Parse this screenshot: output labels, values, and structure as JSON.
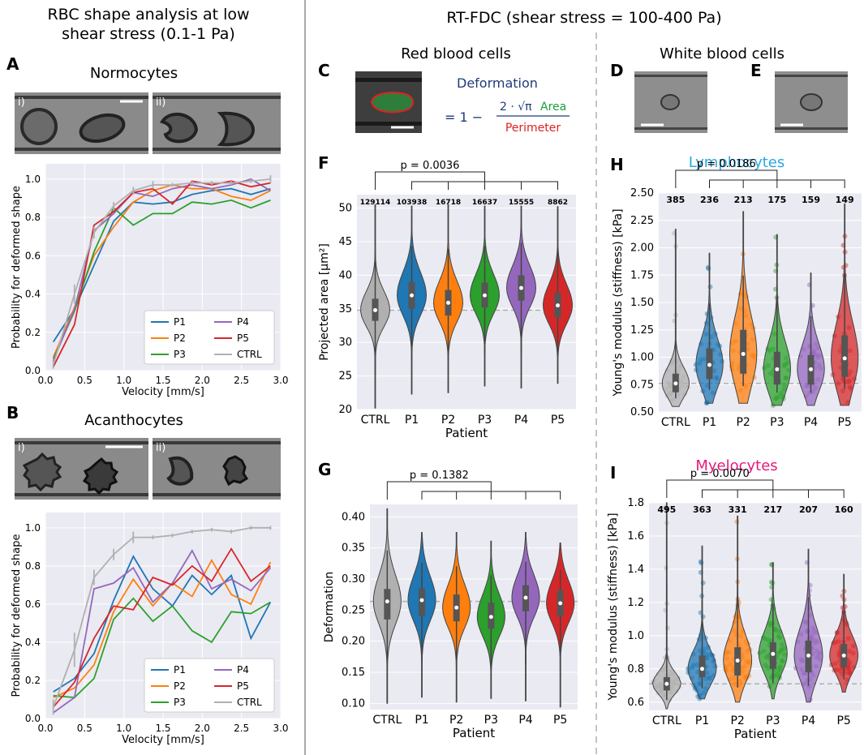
{
  "colors": {
    "CTRL": "#b0b0b0",
    "P1": "#1f77b4",
    "P2": "#ff7f0e",
    "P3": "#2ca02c",
    "P4": "#9467bd",
    "P5": "#d62728",
    "panel_bg": "#eaeaf2",
    "lymph_title": "#2aa7de",
    "myelo_title": "#e5197c",
    "deform_label": "#1f3b7a",
    "area_word": "#1a9e3a",
    "perimeter_word": "#e02020"
  },
  "left": {
    "title_line1": "RBC shape analysis at low",
    "title_line2": "shear stress (0.1-1 Pa)",
    "A": {
      "letter": "A",
      "title": "Normocytes",
      "img_i": "i)",
      "img_ii": "ii)"
    },
    "B": {
      "letter": "B",
      "title": "Acanthocytes",
      "img_i": "i)",
      "img_ii": "ii)"
    }
  },
  "right": {
    "title": "RT-FDC (shear stress = 100-400 Pa)",
    "rbc_heading": "Red blood cells",
    "wbc_heading": "White blood cells",
    "C": {
      "letter": "C",
      "formula_top": "Deformation",
      "formula_eq": "= 1 −",
      "numerator_prefix": "2 · √π",
      "numerator_area": "Area",
      "denominator": "Perimeter"
    },
    "D": {
      "letter": "D"
    },
    "E": {
      "letter": "E"
    }
  },
  "chart_data": [
    {
      "id": "A",
      "type": "line",
      "xlabel": "Velocity [mm/s]",
      "ylabel": "Probability for deformed shape",
      "xlim": [
        0,
        3.0
      ],
      "ylim": [
        0,
        1.08
      ],
      "xticks": [
        "0.0",
        "0.5",
        "1.0",
        "1.5",
        "2.0",
        "2.5",
        "3.0"
      ],
      "yticks": [
        "0.0",
        "0.2",
        "0.4",
        "0.6",
        "0.8",
        "1.0"
      ],
      "x": [
        0.1,
        0.37,
        0.62,
        0.87,
        1.12,
        1.37,
        1.62,
        1.87,
        2.12,
        2.37,
        2.62,
        2.87
      ],
      "legend": [
        [
          "P1",
          "P4"
        ],
        [
          "P2",
          "P5"
        ],
        [
          "P3",
          "CTRL"
        ]
      ],
      "series": [
        {
          "name": "P1",
          "values": [
            0.15,
            0.32,
            0.55,
            0.78,
            0.88,
            0.87,
            0.88,
            0.92,
            0.94,
            0.95,
            0.92,
            0.95
          ]
        },
        {
          "name": "P2",
          "values": [
            0.07,
            0.33,
            0.6,
            0.75,
            0.88,
            0.94,
            0.97,
            0.95,
            0.95,
            0.91,
            0.89,
            0.94
          ]
        },
        {
          "name": "P3",
          "values": [
            0.06,
            0.31,
            0.62,
            0.85,
            0.76,
            0.82,
            0.82,
            0.88,
            0.87,
            0.89,
            0.85,
            0.89
          ]
        },
        {
          "name": "P4",
          "values": [
            0.05,
            0.32,
            0.73,
            0.82,
            0.93,
            0.91,
            0.95,
            0.97,
            0.95,
            0.97,
            1.0,
            0.94
          ]
        },
        {
          "name": "P5",
          "values": [
            0.02,
            0.24,
            0.76,
            0.83,
            0.93,
            0.95,
            0.87,
            0.99,
            0.97,
            0.99,
            0.96,
            0.98
          ]
        },
        {
          "name": "CTRL",
          "values": [
            0.03,
            0.4,
            0.72,
            0.86,
            0.94,
            0.97,
            0.97,
            0.98,
            0.98,
            0.98,
            0.99,
            1.0
          ],
          "errors": [
            0.02,
            0.05,
            0.03,
            0.02,
            0.02,
            0.02,
            0.01,
            0.01,
            0.01,
            0.01,
            0.01,
            0.02
          ]
        }
      ]
    },
    {
      "id": "B",
      "type": "line",
      "xlabel": "Velocity [mm/s]",
      "ylabel": "Probability for deformed shape",
      "xlim": [
        0,
        3.0
      ],
      "ylim": [
        0,
        1.08
      ],
      "xticks": [
        "0.0",
        "0.5",
        "1.0",
        "1.5",
        "2.0",
        "2.5",
        "3.0"
      ],
      "yticks": [
        "0.0",
        "0.2",
        "0.4",
        "0.6",
        "0.8",
        "1.0"
      ],
      "x": [
        0.1,
        0.37,
        0.62,
        0.87,
        1.12,
        1.37,
        1.62,
        1.87,
        2.12,
        2.37,
        2.62,
        2.87
      ],
      "legend": [
        [
          "P1",
          "P4"
        ],
        [
          "P2",
          "P5"
        ],
        [
          "P3",
          "CTRL"
        ]
      ],
      "series": [
        {
          "name": "P1",
          "values": [
            0.14,
            0.21,
            0.34,
            0.62,
            0.85,
            0.68,
            0.59,
            0.75,
            0.65,
            0.75,
            0.42,
            0.61
          ]
        },
        {
          "name": "P2",
          "values": [
            0.11,
            0.16,
            0.28,
            0.56,
            0.73,
            0.59,
            0.71,
            0.64,
            0.83,
            0.65,
            0.6,
            0.82
          ]
        },
        {
          "name": "P3",
          "values": [
            0.12,
            0.11,
            0.21,
            0.52,
            0.63,
            0.51,
            0.59,
            0.46,
            0.4,
            0.56,
            0.55,
            0.61
          ]
        },
        {
          "name": "P4",
          "values": [
            0.03,
            0.11,
            0.68,
            0.71,
            0.79,
            0.61,
            0.71,
            0.88,
            0.68,
            0.73,
            0.67,
            0.79
          ]
        },
        {
          "name": "P5",
          "values": [
            0.06,
            0.19,
            0.42,
            0.59,
            0.57,
            0.74,
            0.7,
            0.8,
            0.72,
            0.89,
            0.72,
            0.8
          ]
        },
        {
          "name": "CTRL",
          "values": [
            0.06,
            0.36,
            0.74,
            0.86,
            0.95,
            0.95,
            0.96,
            0.98,
            0.99,
            0.98,
            1.0,
            1.0
          ],
          "errors": [
            0.04,
            0.09,
            0.04,
            0.03,
            0.03,
            0.01,
            0.01,
            0.01,
            0.01,
            0.01,
            0.01,
            0.01
          ]
        }
      ]
    },
    {
      "id": "F",
      "type": "violin",
      "xlabel": "Patient",
      "ylabel": "Projected area [μm²]",
      "ylim": [
        20,
        52
      ],
      "yticks": [
        "20",
        "25",
        "30",
        "35",
        "40",
        "45",
        "50"
      ],
      "categories": [
        "CTRL",
        "P1",
        "P2",
        "P3",
        "P4",
        "P5"
      ],
      "counts": [
        "129114",
        "103938",
        "16718",
        "16637",
        "15555",
        "8862"
      ],
      "medians": [
        34.8,
        37.0,
        35.9,
        37.0,
        38.1,
        35.5
      ],
      "q1": [
        33.2,
        35.0,
        34.0,
        35.2,
        36.2,
        33.7
      ],
      "q3": [
        36.5,
        39.0,
        37.8,
        38.9,
        40.0,
        37.4
      ],
      "min": [
        20.2,
        22.3,
        22.5,
        23.5,
        23.2,
        23.9
      ],
      "max": [
        50.5,
        50.3,
        50.5,
        50.3,
        50.3,
        50.2
      ],
      "ctrl_median": 34.8,
      "pvalue": "p = 0.0036"
    },
    {
      "id": "G",
      "type": "violin",
      "xlabel": "Patient",
      "ylabel": "Deformation",
      "ylim": [
        0.09,
        0.42
      ],
      "yticks": [
        "0.10",
        "0.15",
        "0.20",
        "0.25",
        "0.30",
        "0.35",
        "0.40"
      ],
      "categories": [
        "CTRL",
        "P1",
        "P2",
        "P3",
        "P4",
        "P5"
      ],
      "medians": [
        0.264,
        0.266,
        0.254,
        0.239,
        0.27,
        0.261
      ],
      "q1": [
        0.235,
        0.24,
        0.232,
        0.22,
        0.248,
        0.24
      ],
      "q3": [
        0.284,
        0.285,
        0.275,
        0.262,
        0.29,
        0.282
      ],
      "min": [
        0.1,
        0.11,
        0.102,
        0.108,
        0.104,
        0.094
      ],
      "max": [
        0.413,
        0.375,
        0.375,
        0.361,
        0.375,
        0.358
      ],
      "ctrl_median": 0.264,
      "pvalue": "p = 0.1382"
    },
    {
      "id": "H",
      "type": "violin",
      "title": "Lymphocytes",
      "xlabel": "",
      "ylabel": "Young's modulus (stiffness) [kPa]",
      "ylim": [
        0.5,
        2.5
      ],
      "yticks": [
        "0.50",
        "0.75",
        "1.00",
        "1.25",
        "1.50",
        "1.75",
        "2.00",
        "2.25",
        "2.50"
      ],
      "categories": [
        "CTRL",
        "P1",
        "P2",
        "P3",
        "P4",
        "P5"
      ],
      "counts": [
        "385",
        "236",
        "213",
        "175",
        "159",
        "149"
      ],
      "medians": [
        0.76,
        0.93,
        1.03,
        0.89,
        0.89,
        0.99
      ],
      "q1": [
        0.68,
        0.8,
        0.85,
        0.75,
        0.75,
        0.82
      ],
      "q3": [
        0.85,
        1.08,
        1.25,
        1.05,
        1.02,
        1.2
      ],
      "min": [
        0.55,
        0.58,
        0.58,
        0.56,
        0.56,
        0.56
      ],
      "max": [
        2.17,
        1.95,
        2.33,
        2.12,
        1.77,
        2.4
      ],
      "ctrl_median": 0.76,
      "pvalue": "p = 0.0186"
    },
    {
      "id": "I",
      "type": "violin",
      "title": "Myelocytes",
      "xlabel": "Patient",
      "ylabel": "Young's modulus (stiffness) [kPa]",
      "ylim": [
        0.55,
        1.8
      ],
      "yticks": [
        "0.6",
        "0.8",
        "1.0",
        "1.2",
        "1.4",
        "1.6",
        "1.8"
      ],
      "categories": [
        "CTRL",
        "P1",
        "P2",
        "P3",
        "P4",
        "P5"
      ],
      "counts": [
        "495",
        "363",
        "331",
        "217",
        "207",
        "160"
      ],
      "medians": [
        0.71,
        0.8,
        0.85,
        0.89,
        0.88,
        0.88
      ],
      "q1": [
        0.67,
        0.75,
        0.76,
        0.8,
        0.78,
        0.81
      ],
      "q3": [
        0.75,
        0.88,
        0.93,
        0.96,
        0.97,
        0.95
      ],
      "min": [
        0.56,
        0.62,
        0.6,
        0.62,
        0.6,
        0.66
      ],
      "max": [
        1.8,
        1.54,
        1.72,
        1.44,
        1.52,
        1.37
      ],
      "ctrl_median": 0.71,
      "pvalue": "p = 0.0070"
    }
  ]
}
